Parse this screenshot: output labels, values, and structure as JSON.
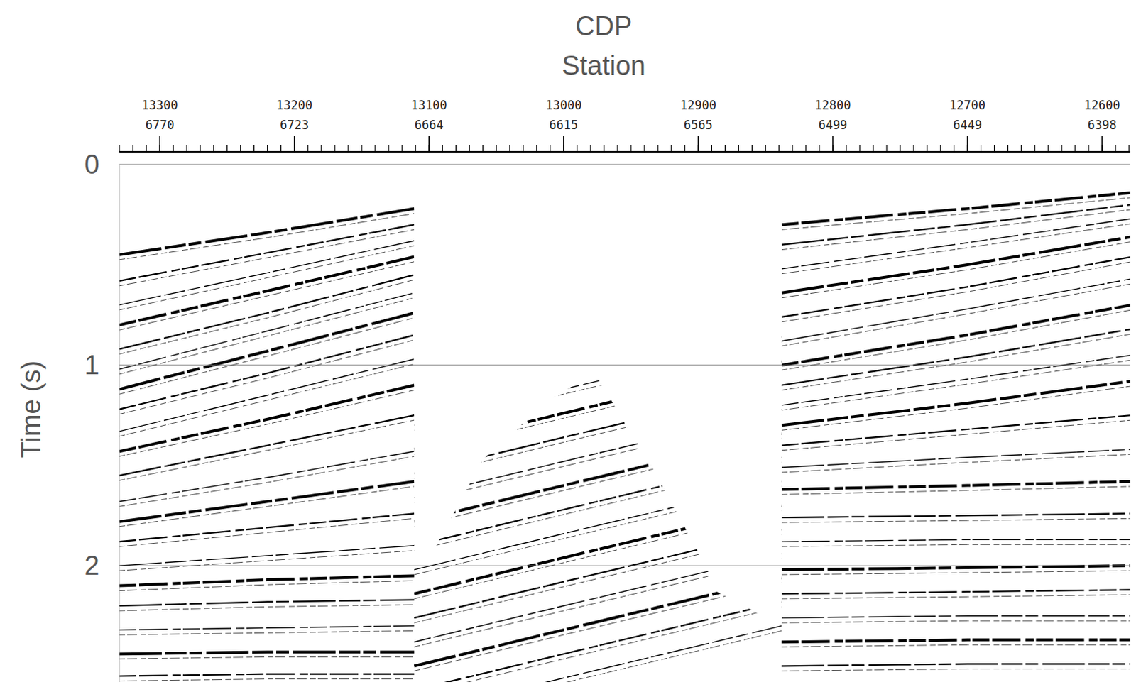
{
  "chart_data": {
    "type": "seismic_section",
    "xlabel": "CDP",
    "station_label": "Station",
    "ylabel": "Time (s)",
    "xlim": [
      13330,
      12579
    ],
    "ylim": [
      0,
      2.58
    ],
    "xticks": [
      13300,
      13200,
      13100,
      13000,
      12900,
      12800,
      12700,
      12600
    ],
    "station_labels": [
      6770,
      6723,
      6664,
      6615,
      6565,
      6499,
      6449,
      6398
    ],
    "xminor": 10,
    "yticks": [
      0,
      1,
      2
    ],
    "grid": true,
    "no_data_area": {
      "cdp": [
        13330,
        12579,
        12579,
        12838,
        12838,
        12889,
        12892,
        12935,
        12977,
        13010,
        13060,
        13101,
        13111,
        13111,
        13330
      ],
      "t": [
        0,
        0,
        0.08,
        0.09,
        2.3,
        2.12,
        2.03,
        1.5,
        1.04,
        1.17,
        1.47,
        1.98,
        2.0,
        0.11,
        0.11
      ]
    },
    "reflectors": [
      {
        "cdp": [
          13330,
          13220,
          13111
        ],
        "t": [
          0.45,
          0.34,
          0.22
        ]
      },
      {
        "cdp": [
          13330,
          13220,
          13111
        ],
        "t": [
          0.58,
          0.44,
          0.3
        ]
      },
      {
        "cdp": [
          13330,
          13220,
          13111
        ],
        "t": [
          0.7,
          0.54,
          0.38
        ]
      },
      {
        "cdp": [
          13330,
          13220,
          13111
        ],
        "t": [
          0.8,
          0.63,
          0.46
        ]
      },
      {
        "cdp": [
          13330,
          13220,
          13111
        ],
        "t": [
          0.92,
          0.74,
          0.55
        ]
      },
      {
        "cdp": [
          13330,
          13220,
          13111
        ],
        "t": [
          1.02,
          0.83,
          0.64
        ]
      },
      {
        "cdp": [
          13330,
          13220,
          13111
        ],
        "t": [
          1.12,
          0.93,
          0.74
        ]
      },
      {
        "cdp": [
          13330,
          13220,
          13111
        ],
        "t": [
          1.22,
          1.04,
          0.85
        ]
      },
      {
        "cdp": [
          13330,
          13220,
          13111
        ],
        "t": [
          1.33,
          1.15,
          0.97
        ]
      },
      {
        "cdp": [
          13330,
          13220,
          13111
        ],
        "t": [
          1.43,
          1.27,
          1.1
        ]
      },
      {
        "cdp": [
          13330,
          13220,
          13111
        ],
        "t": [
          1.55,
          1.4,
          1.25
        ]
      },
      {
        "cdp": [
          13330,
          13220,
          13111
        ],
        "t": [
          1.68,
          1.56,
          1.43
        ]
      },
      {
        "cdp": [
          13330,
          13220,
          13111
        ],
        "t": [
          1.78,
          1.68,
          1.58
        ]
      },
      {
        "cdp": [
          13330,
          13220,
          13111
        ],
        "t": [
          1.88,
          1.81,
          1.74
        ]
      },
      {
        "cdp": [
          13330,
          13220,
          13111
        ],
        "t": [
          2.0,
          1.95,
          1.9
        ]
      },
      {
        "cdp": [
          13330,
          13220,
          13111
        ],
        "t": [
          2.1,
          2.07,
          2.05
        ]
      },
      {
        "cdp": [
          13330,
          13220,
          13111
        ],
        "t": [
          2.2,
          2.18,
          2.17
        ]
      },
      {
        "cdp": [
          13330,
          13220,
          13111
        ],
        "t": [
          2.32,
          2.31,
          2.3
        ]
      },
      {
        "cdp": [
          13330,
          13220,
          13111
        ],
        "t": [
          2.44,
          2.43,
          2.43
        ]
      },
      {
        "cdp": [
          13330,
          13220,
          13111
        ],
        "t": [
          2.55,
          2.54,
          2.54
        ]
      },
      {
        "cdp": [
          13111,
          13000,
          12838
        ],
        "t": [
          1.3,
          1.12,
          0.86
        ]
      },
      {
        "cdp": [
          13111,
          13000,
          12838
        ],
        "t": [
          1.42,
          1.24,
          0.98
        ]
      },
      {
        "cdp": [
          13111,
          13000,
          12838
        ],
        "t": [
          1.54,
          1.36,
          1.1
        ]
      },
      {
        "cdp": [
          13111,
          13000,
          12838
        ],
        "t": [
          1.66,
          1.48,
          1.22
        ]
      },
      {
        "cdp": [
          13111,
          13000,
          12838
        ],
        "t": [
          1.78,
          1.6,
          1.34
        ]
      },
      {
        "cdp": [
          13111,
          13000,
          12838
        ],
        "t": [
          1.9,
          1.72,
          1.46
        ]
      },
      {
        "cdp": [
          13111,
          13000,
          12838
        ],
        "t": [
          2.02,
          1.84,
          1.58
        ]
      },
      {
        "cdp": [
          13111,
          13000,
          12838
        ],
        "t": [
          2.14,
          1.96,
          1.7
        ]
      },
      {
        "cdp": [
          13111,
          13000,
          12838
        ],
        "t": [
          2.26,
          2.08,
          1.82
        ]
      },
      {
        "cdp": [
          13111,
          13000,
          12838
        ],
        "t": [
          2.38,
          2.2,
          1.94
        ]
      },
      {
        "cdp": [
          13111,
          13000,
          12838
        ],
        "t": [
          2.5,
          2.32,
          2.06
        ]
      },
      {
        "cdp": [
          13111,
          13000,
          12838
        ],
        "t": [
          2.62,
          2.44,
          2.18
        ]
      },
      {
        "cdp": [
          13111,
          13000,
          12838
        ],
        "t": [
          2.74,
          2.56,
          2.3
        ]
      },
      {
        "cdp": [
          12838,
          12700,
          12578
        ],
        "t": [
          0.3,
          0.22,
          0.14
        ]
      },
      {
        "cdp": [
          12838,
          12700,
          12578
        ],
        "t": [
          0.4,
          0.3,
          0.2
        ]
      },
      {
        "cdp": [
          12838,
          12700,
          12578
        ],
        "t": [
          0.52,
          0.39,
          0.27
        ]
      },
      {
        "cdp": [
          12838,
          12700,
          12578
        ],
        "t": [
          0.64,
          0.5,
          0.36
        ]
      },
      {
        "cdp": [
          12838,
          12700,
          12578
        ],
        "t": [
          0.76,
          0.61,
          0.46
        ]
      },
      {
        "cdp": [
          12838,
          12700,
          12578
        ],
        "t": [
          0.88,
          0.72,
          0.57
        ]
      },
      {
        "cdp": [
          12838,
          12700,
          12578
        ],
        "t": [
          1.0,
          0.85,
          0.7
        ]
      },
      {
        "cdp": [
          12838,
          12700,
          12578
        ],
        "t": [
          1.1,
          0.96,
          0.82
        ]
      },
      {
        "cdp": [
          12838,
          12700,
          12578
        ],
        "t": [
          1.2,
          1.07,
          0.95
        ]
      },
      {
        "cdp": [
          12838,
          12700,
          12578
        ],
        "t": [
          1.3,
          1.19,
          1.08
        ]
      },
      {
        "cdp": [
          12838,
          12700,
          12578
        ],
        "t": [
          1.4,
          1.32,
          1.25
        ]
      },
      {
        "cdp": [
          12838,
          12700,
          12578
        ],
        "t": [
          1.51,
          1.46,
          1.42
        ]
      },
      {
        "cdp": [
          12838,
          12700,
          12578
        ],
        "t": [
          1.62,
          1.6,
          1.58
        ]
      },
      {
        "cdp": [
          12838,
          12700,
          12578
        ],
        "t": [
          1.76,
          1.75,
          1.74
        ]
      },
      {
        "cdp": [
          12838,
          12700,
          12578
        ],
        "t": [
          1.88,
          1.87,
          1.87
        ]
      },
      {
        "cdp": [
          12838,
          12700,
          12578
        ],
        "t": [
          2.02,
          2.01,
          2.0
        ]
      },
      {
        "cdp": [
          12838,
          12700,
          12578
        ],
        "t": [
          2.14,
          2.13,
          2.12
        ]
      },
      {
        "cdp": [
          12838,
          12700,
          12578
        ],
        "t": [
          2.26,
          2.25,
          2.25
        ]
      },
      {
        "cdp": [
          12838,
          12700,
          12578
        ],
        "t": [
          2.38,
          2.37,
          2.37
        ]
      },
      {
        "cdp": [
          12838,
          12700,
          12578
        ],
        "t": [
          2.5,
          2.49,
          2.49
        ]
      }
    ]
  }
}
